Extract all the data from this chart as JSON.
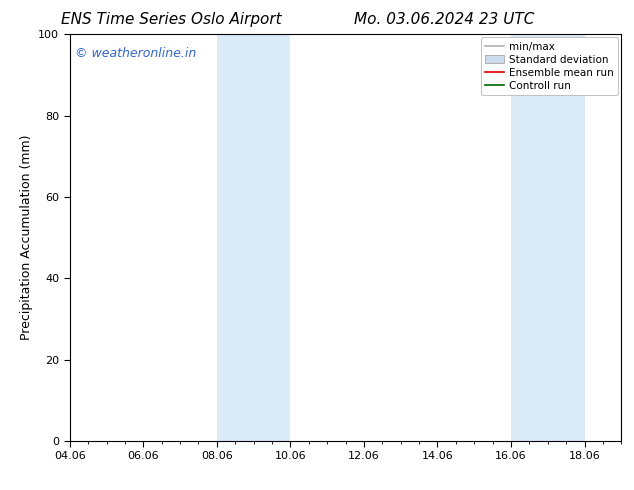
{
  "title_left": "ENS Time Series Oslo Airport",
  "title_right": "Mo. 03.06.2024 23 UTC",
  "ylabel": "Precipitation Accumulation (mm)",
  "ylim": [
    0,
    100
  ],
  "yticks": [
    0,
    20,
    40,
    60,
    80,
    100
  ],
  "xtick_labels": [
    "04.06",
    "06.06",
    "08.06",
    "10.06",
    "12.06",
    "14.06",
    "16.06",
    "18.06"
  ],
  "xtick_positions": [
    0,
    2,
    4,
    6,
    8,
    10,
    12,
    14
  ],
  "xlim": [
    0,
    15
  ],
  "shaded_bands": [
    {
      "x_start": 4,
      "x_end": 6,
      "color": "#daeaf7"
    },
    {
      "x_start": 12,
      "x_end": 14,
      "color": "#daeaf7"
    }
  ],
  "watermark_text": "© weatheronline.in",
  "watermark_color": "#3366cc",
  "legend_items": [
    {
      "label": "min/max",
      "color": "#b0b0b0",
      "lw": 1.2,
      "style": "solid",
      "type": "line"
    },
    {
      "label": "Standard deviation",
      "color": "#ccdded",
      "lw": 5,
      "style": "solid",
      "type": "patch"
    },
    {
      "label": "Ensemble mean run",
      "color": "#dd0000",
      "lw": 1.2,
      "style": "solid",
      "type": "line"
    },
    {
      "label": "Controll run",
      "color": "#006600",
      "lw": 1.2,
      "style": "solid",
      "type": "line"
    }
  ],
  "bg_color": "#ffffff",
  "plot_bg_color": "#ffffff",
  "title_fontsize": 11,
  "axis_label_fontsize": 9,
  "tick_fontsize": 8,
  "watermark_fontsize": 9,
  "legend_fontsize": 7.5
}
